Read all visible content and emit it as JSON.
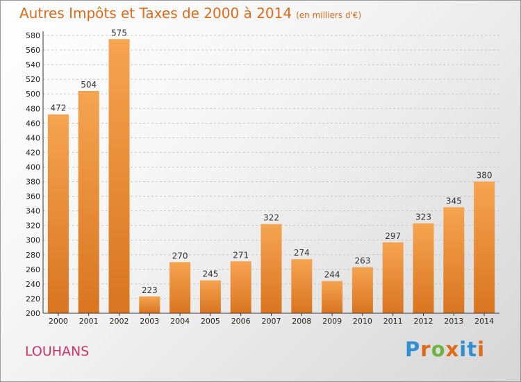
{
  "chart_data": {
    "type": "bar",
    "title": "Autres Impôts et Taxes de 2000 à 2014",
    "subtitle": "(en milliers d'€)",
    "categories": [
      "2000",
      "2001",
      "2002",
      "2003",
      "2004",
      "2005",
      "2006",
      "2007",
      "2008",
      "2009",
      "2010",
      "2011",
      "2012",
      "2013",
      "2014"
    ],
    "values": [
      472,
      504,
      575,
      223,
      270,
      245,
      271,
      322,
      274,
      244,
      263,
      297,
      323,
      345,
      380
    ],
    "xlabel": "",
    "ylabel": "",
    "ylim": [
      200,
      580
    ],
    "ytick_step": 20,
    "grid": true,
    "legend": "none",
    "bar_color": "#f0953a",
    "bar_color_dark": "#d97a24"
  },
  "location": "LOUHANS",
  "logo": {
    "text": "Proxiti",
    "colors": [
      "#2f8fd0",
      "#e06a18",
      "#6cb33f",
      "#e06a18",
      "#2f8fd0",
      "#2f8fd0",
      "#e06a18"
    ]
  }
}
